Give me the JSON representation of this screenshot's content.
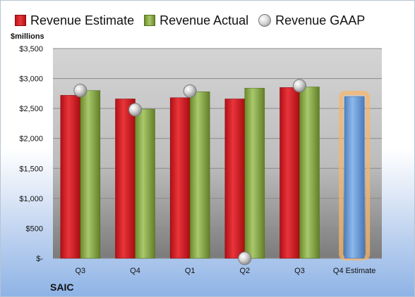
{
  "legend": {
    "estimate": "Revenue Estimate",
    "actual": "Revenue Actual",
    "gaap": "Revenue GAAP"
  },
  "unit_label": "$millions",
  "company": "SAIC",
  "colors": {
    "estimate": "#d3232a",
    "actual": "#8db14f",
    "gaap": "#bfbfbf",
    "estimate_highlight": "#6f9fd8",
    "highlight_glow": "#f5b56b"
  },
  "chart_data": {
    "type": "bar",
    "categories": [
      "Q3",
      "Q4",
      "Q1",
      "Q2",
      "Q3",
      "Q4 Estimate"
    ],
    "series": [
      {
        "name": "Revenue Estimate",
        "values": [
          2720,
          2660,
          2680,
          2660,
          2850,
          2700
        ]
      },
      {
        "name": "Revenue Actual",
        "values": [
          2800,
          2490,
          2780,
          2840,
          2860,
          null
        ]
      },
      {
        "name": "Revenue GAAP",
        "values": [
          2800,
          2480,
          2790,
          0,
          2880,
          null
        ]
      }
    ],
    "ylim": [
      0,
      3500
    ],
    "ytick_values": [
      0,
      500,
      1000,
      1500,
      2000,
      2500,
      3000,
      3500
    ],
    "ytick_labels": [
      "$-",
      "$500",
      "$1,000",
      "$1,500",
      "$2,000",
      "$2,500",
      "$3,000",
      "$3,500"
    ],
    "grid": true,
    "legend_position": "top"
  }
}
